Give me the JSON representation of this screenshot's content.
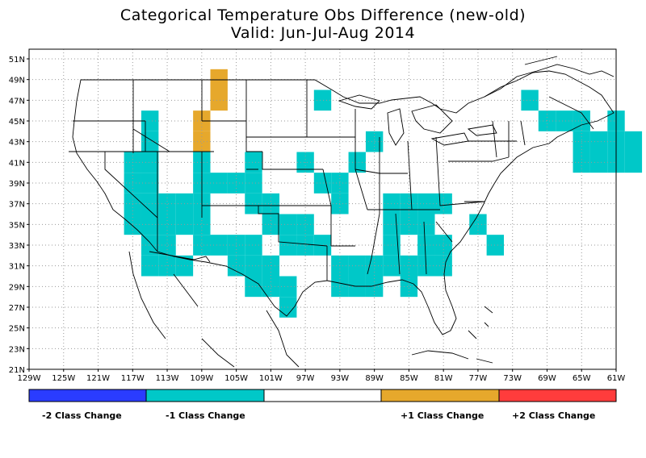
{
  "title_line1": "Categorical Temperature Obs Difference (new-old)",
  "title_line2": "Valid: Jun-Jul-Aug 2014",
  "lat_labels": [
    "51N",
    "49N",
    "47N",
    "45N",
    "43N",
    "41N",
    "39N",
    "37N",
    "35N",
    "33N",
    "31N",
    "29N",
    "27N",
    "25N",
    "23N",
    "21N"
  ],
  "lon_labels": [
    "129W",
    "125W",
    "121W",
    "117W",
    "113W",
    "109W",
    "105W",
    "101W",
    "97W",
    "93W",
    "89W",
    "85W",
    "81W",
    "77W",
    "73W",
    "69W",
    "65W",
    "61W"
  ],
  "colors": {
    "minus2": "#2a3cff",
    "minus1": "#00c8c8",
    "zero": "#ffffff",
    "plus1": "#e6a82c",
    "plus2": "#ff3c3c"
  },
  "legend": {
    "minus2_label": "-2 Class Change",
    "minus1_label": "-1 Class Change",
    "plus1_label": "+1 Class Change",
    "plus2_label": "+2 Class Change"
  },
  "cells_minus1": [
    [
      71,
      47
    ],
    [
      69,
      45
    ],
    [
      67,
      45
    ],
    [
      65,
      45
    ],
    [
      61,
      45
    ],
    [
      65,
      43
    ],
    [
      63,
      43
    ],
    [
      61,
      43
    ],
    [
      59,
      43
    ],
    [
      65,
      41
    ],
    [
      63,
      41
    ],
    [
      61,
      41
    ],
    [
      59,
      41
    ],
    [
      91,
      41
    ],
    [
      89,
      43
    ],
    [
      95,
      47
    ],
    [
      115,
      45
    ],
    [
      115,
      43
    ],
    [
      117,
      41
    ],
    [
      115,
      41
    ],
    [
      117,
      39
    ],
    [
      115,
      39
    ],
    [
      117,
      37
    ],
    [
      115,
      37
    ],
    [
      117,
      35
    ],
    [
      115,
      35
    ],
    [
      113,
      37
    ],
    [
      111,
      37
    ],
    [
      109,
      37
    ],
    [
      113,
      35
    ],
    [
      111,
      35
    ],
    [
      109,
      35
    ],
    [
      113,
      33
    ],
    [
      109,
      33
    ],
    [
      111,
      31
    ],
    [
      113,
      31
    ],
    [
      115,
      33
    ],
    [
      115,
      31
    ],
    [
      107,
      33
    ],
    [
      105,
      33
    ],
    [
      103,
      33
    ],
    [
      105,
      31
    ],
    [
      103,
      31
    ],
    [
      101,
      31
    ],
    [
      103,
      29
    ],
    [
      101,
      29
    ],
    [
      99,
      29
    ],
    [
      99,
      27
    ],
    [
      109,
      39
    ],
    [
      109,
      41
    ],
    [
      107,
      39
    ],
    [
      105,
      39
    ],
    [
      103,
      39
    ],
    [
      103,
      37
    ],
    [
      103,
      41
    ],
    [
      101,
      37
    ],
    [
      101,
      35
    ],
    [
      99,
      35
    ],
    [
      97,
      35
    ],
    [
      99,
      33
    ],
    [
      97,
      33
    ],
    [
      95,
      33
    ],
    [
      95,
      39
    ],
    [
      97,
      41
    ],
    [
      93,
      39
    ],
    [
      93,
      37
    ],
    [
      93,
      31
    ],
    [
      91,
      31
    ],
    [
      89,
      31
    ],
    [
      93,
      29
    ],
    [
      91,
      29
    ],
    [
      89,
      29
    ],
    [
      87,
      37
    ],
    [
      85,
      37
    ],
    [
      83,
      37
    ],
    [
      81,
      37
    ],
    [
      87,
      35
    ],
    [
      85,
      35
    ],
    [
      83,
      35
    ],
    [
      87,
      33
    ],
    [
      83,
      33
    ],
    [
      87,
      31
    ],
    [
      83,
      31
    ],
    [
      81,
      31
    ],
    [
      81,
      33
    ],
    [
      85,
      29
    ],
    [
      85,
      31
    ],
    [
      77,
      35
    ],
    [
      75,
      33
    ]
  ],
  "cells_plus1": [
    [
      107,
      49
    ],
    [
      107,
      47
    ],
    [
      109,
      45
    ],
    [
      109,
      43
    ]
  ]
}
